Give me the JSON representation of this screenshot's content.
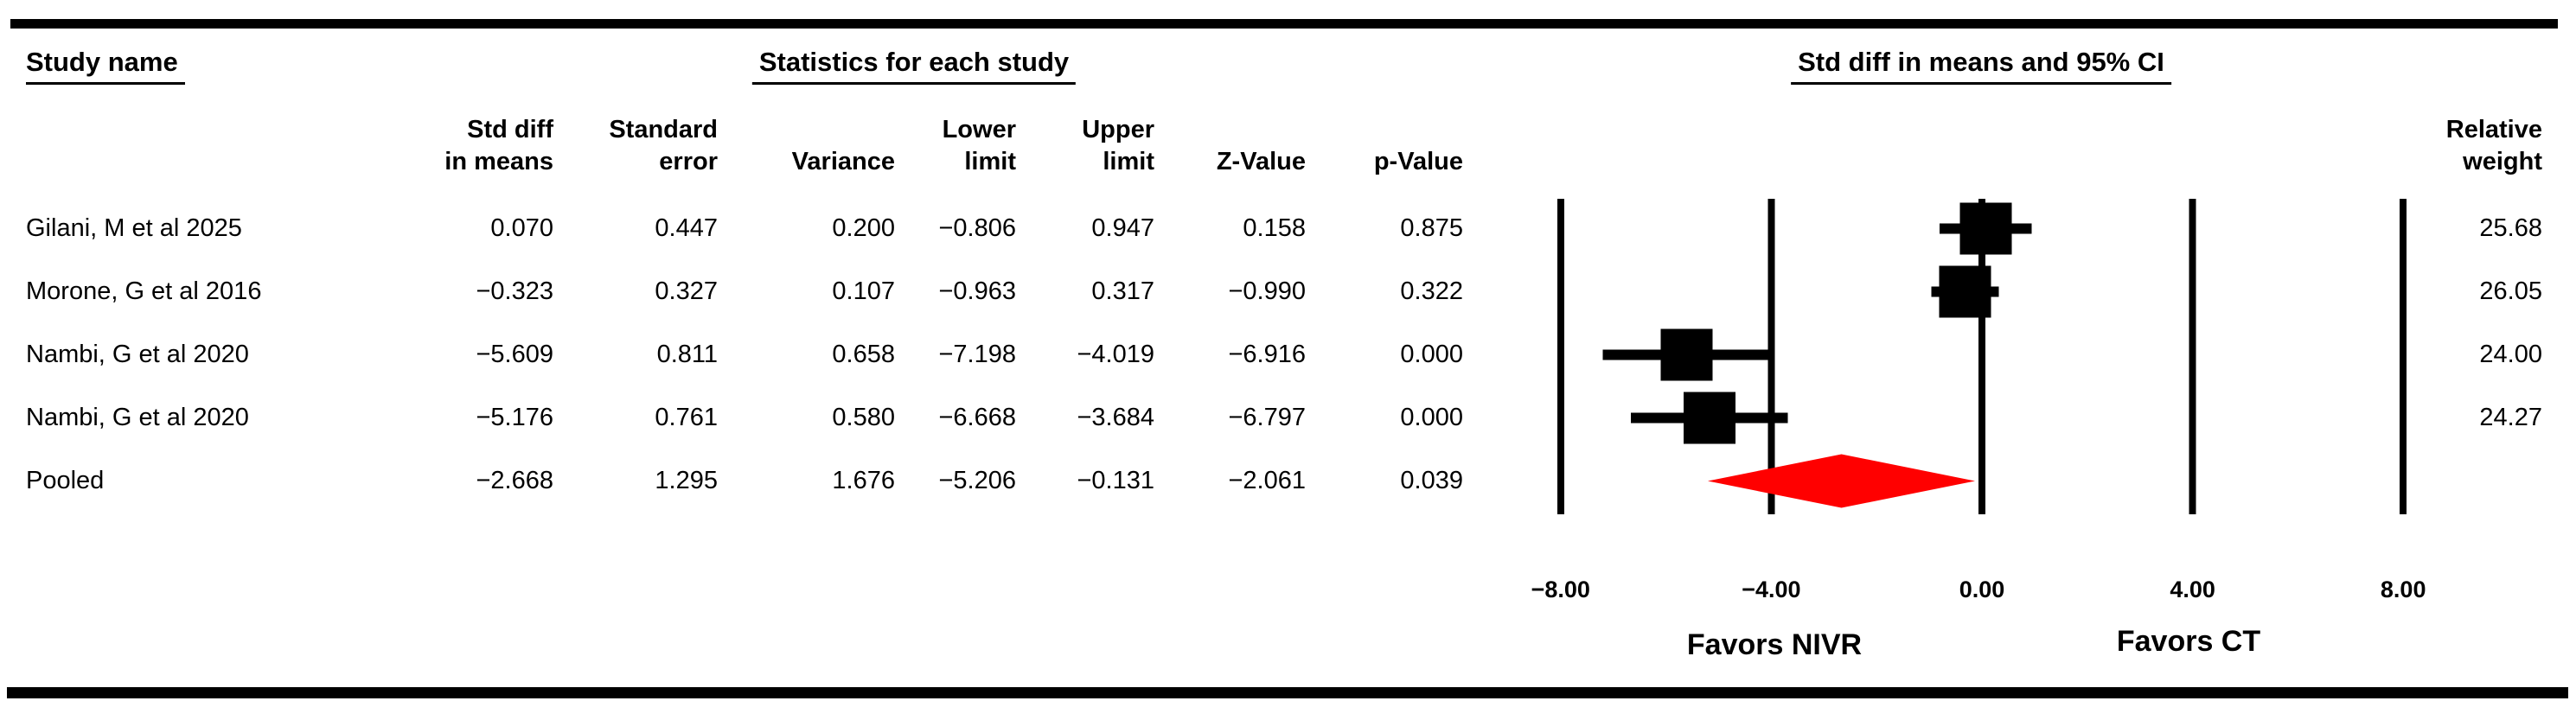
{
  "titles": {
    "study_name": "Study name",
    "statistics": "Statistics for each study",
    "plot": "Std diff in means and 95% CI"
  },
  "table": {
    "columns": [
      "Std diff\nin means",
      "Standard\nerror",
      "Variance",
      "Lower\nlimit",
      "Upper\nlimit",
      "Z-Value",
      "p-Value"
    ],
    "weight_header": "Relative\nweight",
    "rows": [
      {
        "study": "Gilani, M et al 2025",
        "std_diff": "0.070",
        "std_err": "0.447",
        "variance": "0.200",
        "lower": "−0.806",
        "upper": "0.947",
        "z": "0.158",
        "p": "0.875",
        "weight": "25.68"
      },
      {
        "study": "Morone, G et al 2016",
        "std_diff": "−0.323",
        "std_err": "0.327",
        "variance": "0.107",
        "lower": "−0.963",
        "upper": "0.317",
        "z": "−0.990",
        "p": "0.322",
        "weight": "26.05"
      },
      {
        "study": "Nambi, G et al 2020",
        "std_diff": "−5.609",
        "std_err": "0.811",
        "variance": "0.658",
        "lower": "−7.198",
        "upper": "−4.019",
        "z": "−6.916",
        "p": "0.000",
        "weight": "24.00"
      },
      {
        "study": "Nambi, G et al 2020",
        "std_diff": "−5.176",
        "std_err": "0.761",
        "variance": "0.580",
        "lower": "−6.668",
        "upper": "−3.684",
        "z": "−6.797",
        "p": "0.000",
        "weight": "24.27"
      },
      {
        "study": "Pooled",
        "std_diff": "−2.668",
        "std_err": "1.295",
        "variance": "1.676",
        "lower": "−5.206",
        "upper": "−0.131",
        "z": "−2.061",
        "p": "0.039",
        "weight": ""
      }
    ]
  },
  "chart_data": {
    "type": "forest",
    "title": "Std diff in means and 95% CI",
    "xlim": [
      -8,
      8
    ],
    "x_ticks": [
      -8,
      -4,
      0,
      4,
      8
    ],
    "x_tick_labels": [
      "−8.00",
      "−4.00",
      "0.00",
      "4.00",
      "8.00"
    ],
    "grid": true,
    "favors_left": "Favors NIVR",
    "favors_right": "Favors CT",
    "marker_color": "#000000",
    "diamond_color": "#ff0000",
    "studies": [
      {
        "name": "Gilani, M et al 2025",
        "mean": 0.07,
        "lower": -0.806,
        "upper": 0.947,
        "weight": 25.68
      },
      {
        "name": "Morone, G et al 2016",
        "mean": -0.323,
        "lower": -0.963,
        "upper": 0.317,
        "weight": 26.05
      },
      {
        "name": "Nambi, G et al 2020",
        "mean": -5.609,
        "lower": -7.198,
        "upper": -4.019,
        "weight": 24.0
      },
      {
        "name": "Nambi, G et al 2020",
        "mean": -5.176,
        "lower": -6.668,
        "upper": -3.684,
        "weight": 24.27
      }
    ],
    "pooled": {
      "name": "Pooled",
      "mean": -2.668,
      "lower": -5.206,
      "upper": -0.131
    }
  }
}
